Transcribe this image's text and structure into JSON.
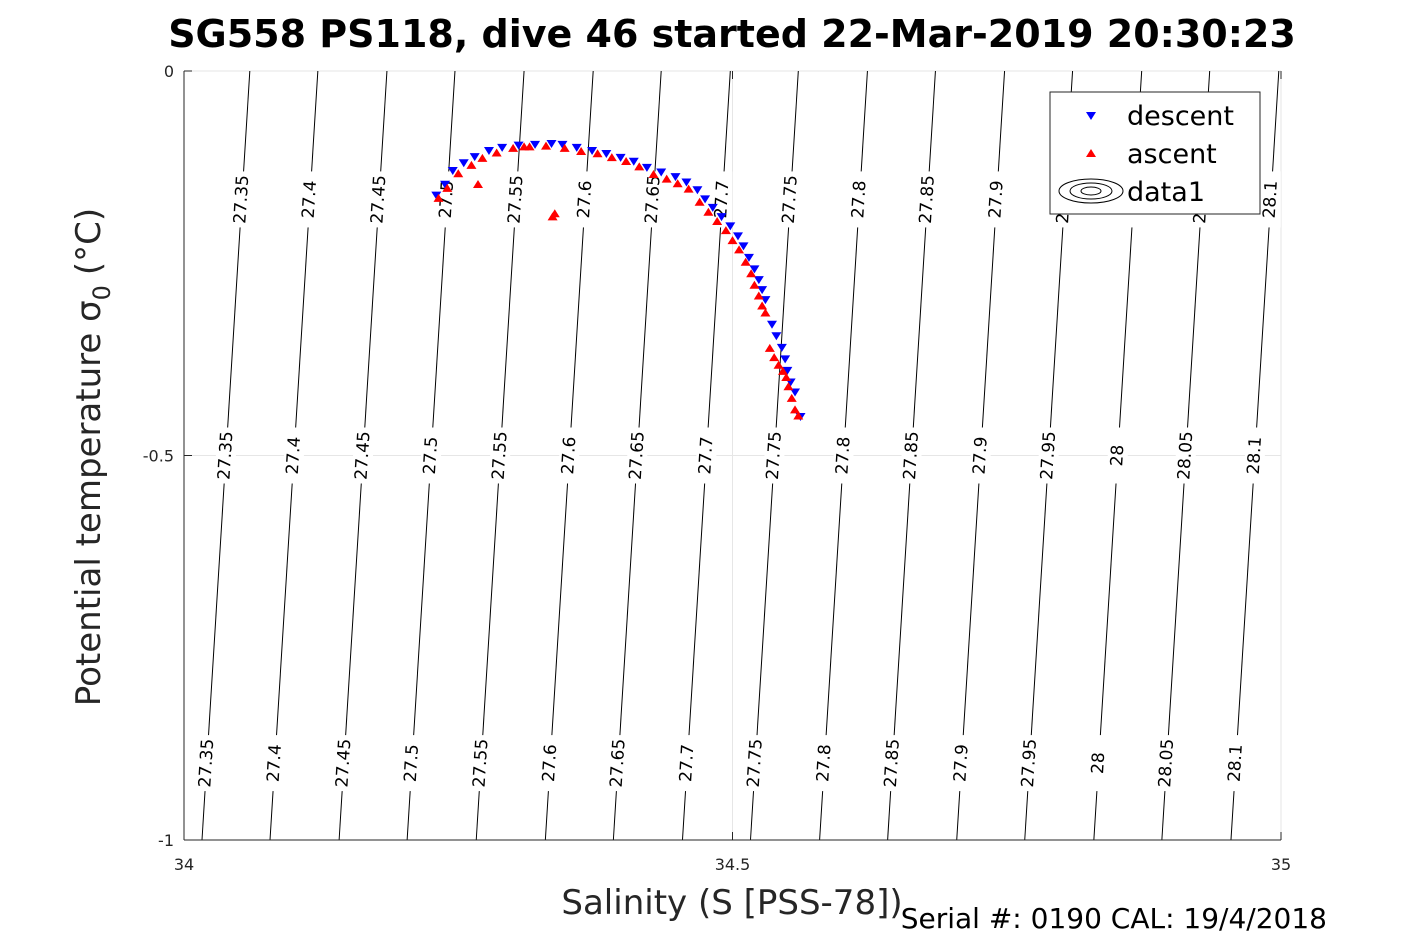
{
  "chart_data": {
    "type": "scatter",
    "title": "SG558 PS118, dive 46 started 22-Mar-2019 20:30:23",
    "xlabel": "Salinity (S [PSS-78])",
    "ylabel": "Potential temperature σ",
    "ylabel_subscript": "0",
    "ylabel_unit": "(°C)",
    "xlim": [
      34,
      35
    ],
    "ylim": [
      -1,
      0
    ],
    "x_ticks": [
      34,
      34.5,
      35
    ],
    "x_tick_labels": [
      "34",
      "34.5",
      "35"
    ],
    "y_ticks": [
      0,
      -0.5,
      -1
    ],
    "y_tick_labels": [
      "0",
      "-0.5",
      "-1"
    ],
    "grid": true,
    "legend_position": "top-right",
    "legend": [
      "descent",
      "ascent",
      "data1"
    ],
    "footer": "Serial #: 0190  CAL: 19/4/2018",
    "contours": {
      "levels": [
        "27.35",
        "27.4",
        "27.45",
        "27.5",
        "27.55",
        "27.6",
        "27.65",
        "27.7",
        "27.75",
        "27.8",
        "27.85",
        "27.9",
        "27.95",
        "28",
        "28.05",
        "28.1"
      ],
      "s_at_t0": [
        34.06,
        34.122,
        34.185,
        34.247,
        34.31,
        34.373,
        34.435,
        34.498,
        34.56,
        34.623,
        34.685,
        34.748,
        34.81,
        34.873,
        34.935,
        34.998
      ]
    },
    "series": [
      {
        "name": "descent",
        "color": "#0000ff",
        "marker": "triangle-down",
        "points": [
          [
            34.23,
            -0.162
          ],
          [
            34.238,
            -0.148
          ],
          [
            34.245,
            -0.13
          ],
          [
            34.255,
            -0.12
          ],
          [
            34.265,
            -0.112
          ],
          [
            34.278,
            -0.104
          ],
          [
            34.29,
            -0.1
          ],
          [
            34.305,
            -0.097
          ],
          [
            34.32,
            -0.096
          ],
          [
            34.335,
            -0.095
          ],
          [
            34.345,
            -0.096
          ],
          [
            34.358,
            -0.1
          ],
          [
            34.372,
            -0.104
          ],
          [
            34.385,
            -0.108
          ],
          [
            34.398,
            -0.113
          ],
          [
            34.41,
            -0.118
          ],
          [
            34.422,
            -0.126
          ],
          [
            34.435,
            -0.132
          ],
          [
            34.448,
            -0.138
          ],
          [
            34.458,
            -0.145
          ],
          [
            34.468,
            -0.155
          ],
          [
            34.475,
            -0.167
          ],
          [
            34.482,
            -0.178
          ],
          [
            34.49,
            -0.19
          ],
          [
            34.498,
            -0.202
          ],
          [
            34.505,
            -0.215
          ],
          [
            34.51,
            -0.228
          ],
          [
            34.515,
            -0.243
          ],
          [
            34.52,
            -0.258
          ],
          [
            34.524,
            -0.272
          ],
          [
            34.527,
            -0.285
          ],
          [
            34.53,
            -0.298
          ],
          [
            34.536,
            -0.33
          ],
          [
            34.54,
            -0.345
          ],
          [
            34.545,
            -0.36
          ],
          [
            34.548,
            -0.375
          ],
          [
            34.55,
            -0.39
          ],
          [
            34.553,
            -0.405
          ],
          [
            34.557,
            -0.418
          ],
          [
            34.562,
            -0.45
          ]
        ]
      },
      {
        "name": "ascent",
        "color": "#ff0000",
        "marker": "triangle-up",
        "points": [
          [
            34.232,
            -0.165
          ],
          [
            34.24,
            -0.152
          ],
          [
            34.25,
            -0.133
          ],
          [
            34.262,
            -0.122
          ],
          [
            34.272,
            -0.113
          ],
          [
            34.268,
            -0.147
          ],
          [
            34.285,
            -0.106
          ],
          [
            34.3,
            -0.1
          ],
          [
            34.315,
            -0.098
          ],
          [
            34.33,
            -0.097
          ],
          [
            34.347,
            -0.1
          ],
          [
            34.362,
            -0.104
          ],
          [
            34.377,
            -0.107
          ],
          [
            34.39,
            -0.112
          ],
          [
            34.403,
            -0.117
          ],
          [
            34.415,
            -0.124
          ],
          [
            34.428,
            -0.134
          ],
          [
            34.44,
            -0.14
          ],
          [
            34.45,
            -0.146
          ],
          [
            34.46,
            -0.153
          ],
          [
            34.47,
            -0.17
          ],
          [
            34.478,
            -0.183
          ],
          [
            34.486,
            -0.195
          ],
          [
            34.494,
            -0.207
          ],
          [
            34.5,
            -0.22
          ],
          [
            34.506,
            -0.232
          ],
          [
            34.512,
            -0.248
          ],
          [
            34.517,
            -0.263
          ],
          [
            34.52,
            -0.278
          ],
          [
            34.524,
            -0.292
          ],
          [
            34.527,
            -0.305
          ],
          [
            34.53,
            -0.314
          ],
          [
            34.534,
            -0.36
          ],
          [
            34.538,
            -0.372
          ],
          [
            34.542,
            -0.382
          ],
          [
            34.546,
            -0.39
          ],
          [
            34.549,
            -0.398
          ],
          [
            34.551,
            -0.41
          ],
          [
            34.554,
            -0.425
          ],
          [
            34.557,
            -0.44
          ],
          [
            34.56,
            -0.448
          ],
          [
            34.31,
            -0.098
          ],
          [
            34.338,
            -0.185
          ],
          [
            34.336,
            -0.189
          ]
        ]
      }
    ]
  }
}
